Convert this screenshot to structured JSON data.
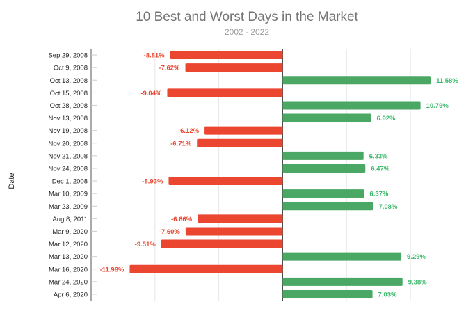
{
  "chart_data": {
    "type": "bar",
    "orientation": "horizontal",
    "title": "10 Best and Worst Days in the Market",
    "subtitle": "2002 - 2022",
    "xlabel": "",
    "ylabel": "Date",
    "xlim": [
      -15,
      12.5
    ],
    "gridlines": [
      -10,
      -5,
      0,
      5,
      10
    ],
    "grid": true,
    "categories": [
      "Sep 29, 2008",
      "Oct 9, 2008",
      "Oct 13, 2008",
      "Oct 15, 2008",
      "Oct 28, 2008",
      "Nov 13, 2008",
      "Nov 19, 2008",
      "Nov 20, 2008",
      "Nov 21, 2008",
      "Nov 24, 2008",
      "Dec 1, 2008",
      "Mar 10, 2009",
      "Mar 23, 2009",
      "Aug 8, 2011",
      "Mar 9, 2020",
      "Mar 12, 2020",
      "Mar 13, 2020",
      "Mar 16, 2020",
      "Mar 24, 2020",
      "Apr 6, 2020"
    ],
    "values": [
      -8.81,
      -7.62,
      11.58,
      -9.04,
      10.79,
      6.92,
      -6.12,
      -6.71,
      6.33,
      6.47,
      -8.93,
      6.37,
      7.08,
      -6.66,
      -7.6,
      -9.51,
      9.29,
      -11.98,
      9.38,
      7.03
    ],
    "data_labels": [
      "-8.81%",
      "-7.62%",
      "11.58%",
      "-9.04%",
      "10.79%",
      "6.92%",
      "-6.12%",
      "-6.71%",
      "6.33%",
      "6.47%",
      "-8.93%",
      "6.37%",
      "7.08%",
      "-6.66%",
      "-7.60%",
      "-9.51%",
      "9.29%",
      "-11.98%",
      "9.38%",
      "7.03%"
    ],
    "colors": {
      "positive": "#4aa764",
      "negative": "#ea4630",
      "positive_label": "#3cb96a",
      "negative_label": "#ea4630"
    }
  }
}
